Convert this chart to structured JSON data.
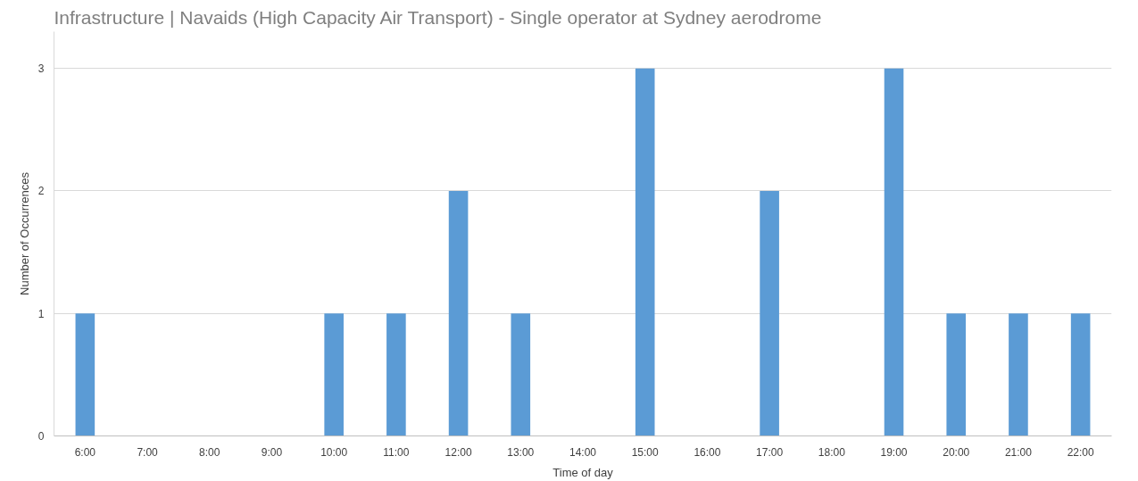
{
  "chart_data": {
    "type": "bar",
    "title": "Infrastructure | Navaids (High Capacity Air Transport) - Single operator at Sydney aerodrome",
    "xlabel": "Time of day",
    "ylabel": "Number of Occurrences",
    "categories": [
      "6:00",
      "7:00",
      "8:00",
      "9:00",
      "10:00",
      "11:00",
      "12:00",
      "13:00",
      "14:00",
      "15:00",
      "16:00",
      "17:00",
      "18:00",
      "19:00",
      "20:00",
      "21:00",
      "22:00"
    ],
    "values": [
      1,
      0,
      0,
      0,
      1,
      1,
      2,
      1,
      0,
      3,
      0,
      2,
      0,
      3,
      1,
      1,
      1
    ],
    "color": "#5b9bd5",
    "ylim": [
      0,
      3.3
    ],
    "yticks": [
      0,
      1,
      2,
      3
    ],
    "grid": "y"
  }
}
